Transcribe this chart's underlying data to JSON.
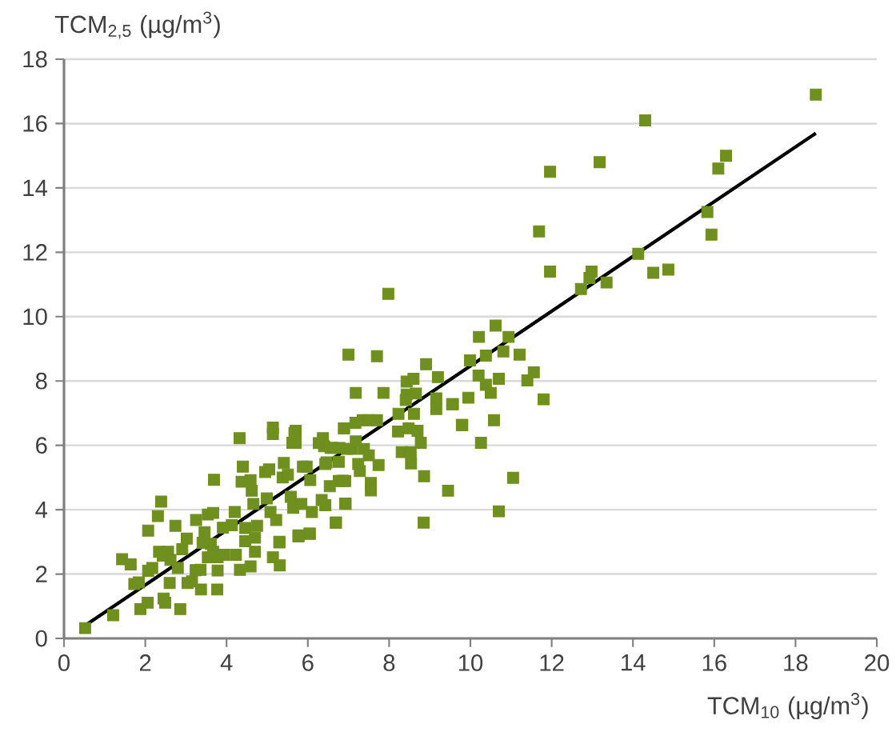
{
  "chart_data": {
    "type": "scatter",
    "xlabel": "TCM$_{10}$ (µg/m$^{3}$)",
    "ylabel": "TCM$_{2,5}$ (µg/m$^{3}$)",
    "xlim": [
      0,
      20
    ],
    "ylim": [
      0,
      18
    ],
    "xticks": [
      0,
      2,
      4,
      6,
      8,
      10,
      12,
      14,
      16,
      18,
      20
    ],
    "yticks": [
      0,
      2,
      4,
      6,
      8,
      10,
      12,
      14,
      16,
      18
    ],
    "grid": "y",
    "series": [
      {
        "marker": "square",
        "color": "#6f8f1f",
        "x": [
          18.5,
          14.3,
          11.96,
          13.18,
          16.29,
          16.1,
          15.83,
          15.93,
          11.69,
          11.96,
          12.98,
          12.93,
          13.35,
          12.72,
          14.13,
          14.5,
          14.87,
          10.62,
          10.21,
          10.94,
          9.99,
          10.38,
          10.81,
          11.21,
          10.2,
          10.7,
          11.56,
          11.4,
          10.38,
          10.5,
          9.55,
          9.95,
          11.8,
          9.8,
          10.58,
          10.26,
          11.05,
          10.7,
          9.45,
          7.98,
          7.0,
          7.7,
          8.91,
          8.43,
          8.6,
          8.43,
          9.2,
          7.18,
          7.86,
          8.41,
          8.66,
          9.16,
          9.16,
          9.57,
          8.61,
          8.23,
          7.17,
          7.35,
          7.5,
          7.7,
          6.89,
          8.22,
          8.48,
          8.7,
          8.78,
          9.79,
          8.31,
          8.53,
          8.54,
          8.86,
          8.85,
          7.74,
          7.55,
          7.55,
          7.24,
          7.28,
          7.5,
          7.38,
          7.09,
          6.96,
          7.18,
          6.78,
          6.76,
          6.92,
          6.76,
          6.92,
          6.69,
          6.46,
          6.43,
          6.37,
          6.4,
          6.61,
          6.27,
          6.54,
          6.34,
          6.05,
          5.77,
          5.3,
          5.7,
          5.7,
          0.52,
          1.21,
          1.88,
          2.06,
          2.45,
          2.49,
          2.86,
          1.43,
          1.64,
          1.73,
          1.84,
          2.07,
          2.17,
          2.07,
          2.31,
          2.39,
          2.34,
          2.43,
          2.56,
          2.62,
          2.74,
          2.8,
          2.91,
          2.6,
          3.04,
          3.15,
          3.24,
          3.37,
          3.77,
          3.02,
          3.25,
          3.36,
          3.54,
          3.41,
          3.46,
          3.54,
          3.67,
          3.69,
          3.61,
          3.67,
          3.78,
          3.78,
          3.91,
          3.94,
          4.13,
          4.2,
          4.23,
          4.32,
          4.33,
          4.4,
          4.37,
          4.46,
          4.46,
          4.59,
          4.62,
          4.66,
          4.59,
          4.75,
          4.7,
          4.7,
          4.95,
          5.05,
          5.14,
          5.14,
          4.99,
          5.14,
          5.31,
          5.3,
          5.08,
          5.22,
          5.41,
          5.62,
          5.67,
          5.38,
          5.51,
          5.58,
          5.64,
          5.77,
          6.04,
          5.88,
          5.97,
          6.06,
          5.84,
          6.1,
          6.56,
          6.43,
          6.69,
          6.85,
          6.89,
          6.93
        ],
        "values": [
          16.9,
          16.1,
          14.5,
          14.8,
          15.0,
          14.6,
          13.25,
          12.55,
          12.65,
          11.4,
          11.4,
          11.2,
          11.06,
          10.86,
          11.95,
          11.36,
          11.46,
          9.72,
          9.37,
          9.37,
          8.64,
          8.79,
          8.92,
          8.82,
          8.17,
          8.07,
          8.27,
          8.02,
          7.88,
          7.63,
          7.28,
          7.48,
          7.43,
          6.63,
          6.78,
          6.08,
          4.99,
          3.95,
          4.59,
          10.71,
          8.82,
          8.77,
          8.52,
          7.98,
          8.07,
          7.58,
          8.12,
          7.63,
          7.63,
          7.41,
          7.61,
          7.46,
          7.13,
          7.28,
          6.98,
          6.98,
          6.7,
          6.78,
          6.78,
          6.78,
          6.53,
          6.43,
          6.53,
          6.45,
          6.08,
          6.63,
          5.79,
          5.79,
          5.44,
          5.04,
          3.6,
          5.39,
          4.83,
          4.6,
          5.42,
          5.2,
          5.69,
          5.89,
          5.89,
          5.89,
          6.12,
          5.92,
          5.49,
          4.89,
          4.89,
          4.19,
          3.6,
          5.47,
          4.14,
          6.22,
          5.97,
          5.92,
          6.07,
          4.73,
          4.3,
          3.25,
          3.2,
          3.0,
          6.45,
          6.08,
          0.32,
          0.72,
          0.91,
          1.11,
          1.24,
          1.11,
          0.91,
          2.46,
          2.3,
          1.69,
          1.74,
          2.1,
          2.19,
          3.35,
          3.8,
          4.25,
          2.69,
          2.57,
          2.69,
          2.44,
          3.5,
          2.19,
          2.77,
          1.72,
          1.72,
          1.77,
          2.12,
          1.52,
          1.52,
          3.1,
          3.68,
          2.13,
          2.52,
          2.97,
          3.3,
          3.85,
          3.9,
          4.93,
          2.94,
          2.69,
          2.11,
          2.52,
          3.44,
          2.6,
          3.52,
          3.93,
          2.6,
          6.22,
          2.13,
          5.34,
          4.87,
          3.43,
          3.02,
          4.92,
          4.59,
          4.18,
          2.24,
          3.5,
          3.13,
          2.69,
          5.17,
          5.25,
          6.55,
          6.35,
          4.35,
          2.52,
          2.27,
          2.98,
          3.93,
          3.68,
          5.45,
          6.08,
          6.38,
          5.0,
          5.09,
          4.4,
          4.06,
          3.17,
          3.26,
          5.34,
          5.34,
          4.92,
          4.18,
          3.93,
          5.92,
          5.42,
          3.6,
          4.9,
          6.53,
          4.18
        ]
      },
      {
        "type": "line",
        "marker": "none",
        "color": "#000000",
        "x": [
          0.4,
          18.5
        ],
        "values": [
          0.3,
          15.7
        ]
      }
    ]
  }
}
